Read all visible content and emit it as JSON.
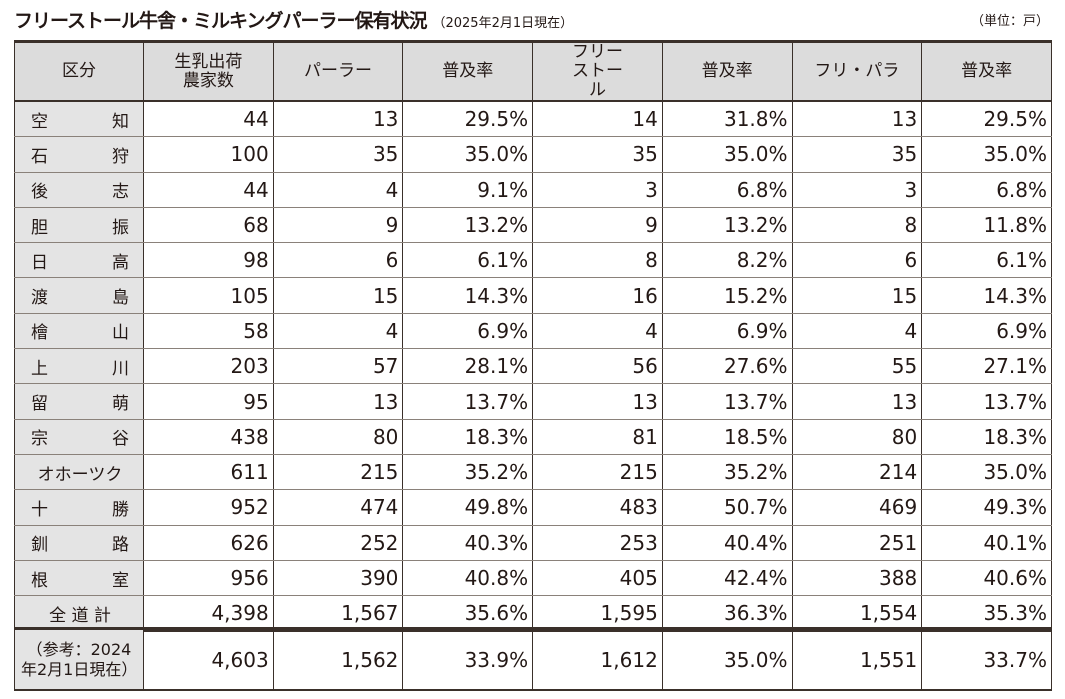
{
  "title": "フリーストール牛舎・ミルキングパーラー保有状況",
  "date_note": "（2025年2月1日現在）",
  "unit": "（単位：戸）",
  "headers": [
    "区分",
    "生乳出荷農家数",
    "パーラー",
    "普及率",
    "フリーストール",
    "普及率",
    "フリ・パラ",
    "普及率"
  ],
  "rows": [
    [
      "空　知",
      "44",
      "13",
      "29.5%",
      "14",
      "31.8%",
      "13",
      "29.5%"
    ],
    [
      "石　狩",
      "100",
      "35",
      "35.0%",
      "35",
      "35.0%",
      "35",
      "35.0%"
    ],
    [
      "後　志",
      "44",
      "4",
      "9.1%",
      "3",
      "6.8%",
      "3",
      "6.8%"
    ],
    [
      "胆　振",
      "68",
      "9",
      "13.2%",
      "9",
      "13.2%",
      "8",
      "11.8%"
    ],
    [
      "日　高",
      "98",
      "6",
      "6.1%",
      "8",
      "8.2%",
      "6",
      "6.1%"
    ],
    [
      "渡　島",
      "105",
      "15",
      "14.3%",
      "16",
      "15.2%",
      "15",
      "14.3%"
    ],
    [
      "檜　山",
      "58",
      "4",
      "6.9%",
      "4",
      "6.9%",
      "4",
      "6.9%"
    ],
    [
      "上　川",
      "203",
      "57",
      "28.1%",
      "56",
      "27.6%",
      "55",
      "27.1%"
    ],
    [
      "留　萌",
      "95",
      "13",
      "13.7%",
      "13",
      "13.7%",
      "13",
      "13.7%"
    ],
    [
      "宗　谷",
      "438",
      "80",
      "18.3%",
      "81",
      "18.5%",
      "80",
      "18.3%"
    ],
    [
      "オホーツク",
      "611",
      "215",
      "35.2%",
      "215",
      "35.2%",
      "214",
      "35.0%"
    ],
    [
      "十　勝",
      "952",
      "474",
      "49.8%",
      "483",
      "50.7%",
      "469",
      "49.3%"
    ],
    [
      "釧　路",
      "626",
      "252",
      "40.3%",
      "253",
      "40.4%",
      "251",
      "40.1%"
    ],
    [
      "根　室",
      "956",
      "390",
      "40.8%",
      "405",
      "42.4%",
      "388",
      "40.6%"
    ],
    [
      "全 道 計",
      "4,398",
      "1,567",
      "35.6%",
      "1,595",
      "36.3%",
      "1,554",
      "35.3%"
    ]
  ],
  "reference": [
    "（参考：2024年2月1日現在）",
    "4,603",
    "1,562",
    "33.9%",
    "1,612",
    "35.0%",
    "1,551",
    "33.7%"
  ]
}
